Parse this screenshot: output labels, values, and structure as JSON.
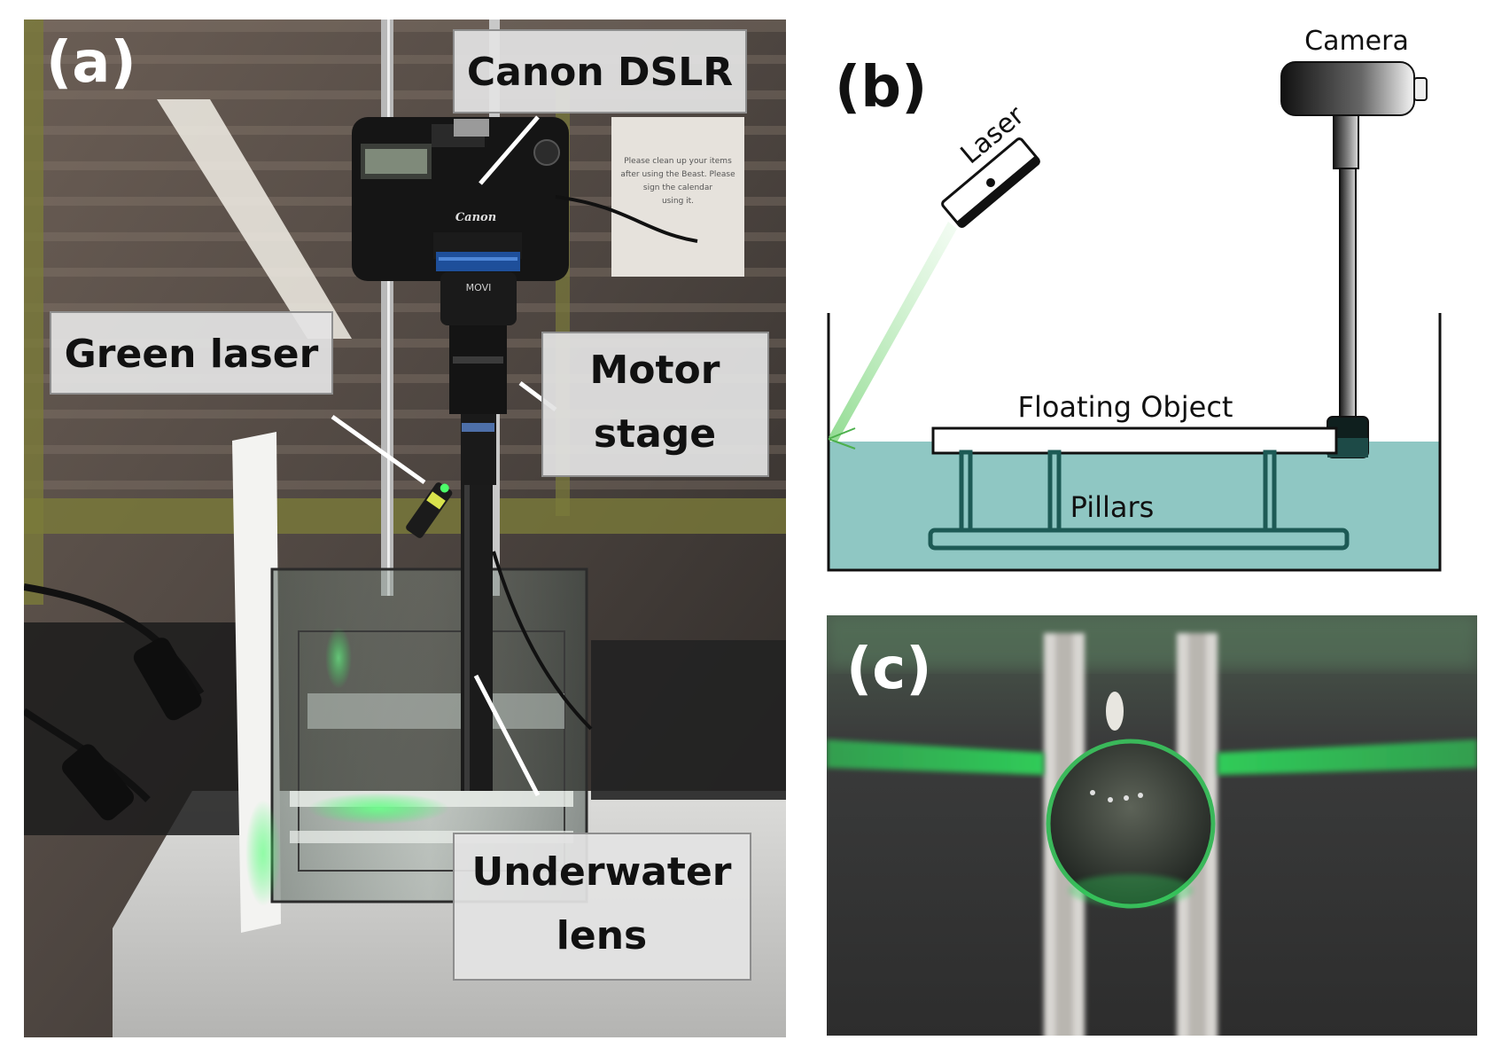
{
  "panels": {
    "a": {
      "label": "(a)",
      "callouts": [
        {
          "lines": [
            "Canon DSLR"
          ]
        },
        {
          "lines": [
            "Green laser"
          ]
        },
        {
          "lines": [
            "Motor",
            "stage"
          ]
        },
        {
          "lines": [
            "Underwater",
            "lens"
          ]
        }
      ],
      "photo_text": {
        "camera_brand": "Canon",
        "lens_brand": "MOVI",
        "notice": [
          "Please clean up your items",
          "after using the Beast. Please",
          "sign the calendar",
          "using it."
        ]
      }
    },
    "b": {
      "label": "(b)",
      "camera_label": "Camera",
      "laser_label": "Laser",
      "object_label": "Floating Object",
      "pillars_label": "Pillars",
      "colors": {
        "water": "#8fc7c3",
        "structure": "#1d5a55",
        "laser_beam": "#7fd67f"
      }
    },
    "c": {
      "label": "(c)",
      "colors": {
        "laser_line": "#2fd35a",
        "background": "#3a3b3b"
      }
    }
  }
}
